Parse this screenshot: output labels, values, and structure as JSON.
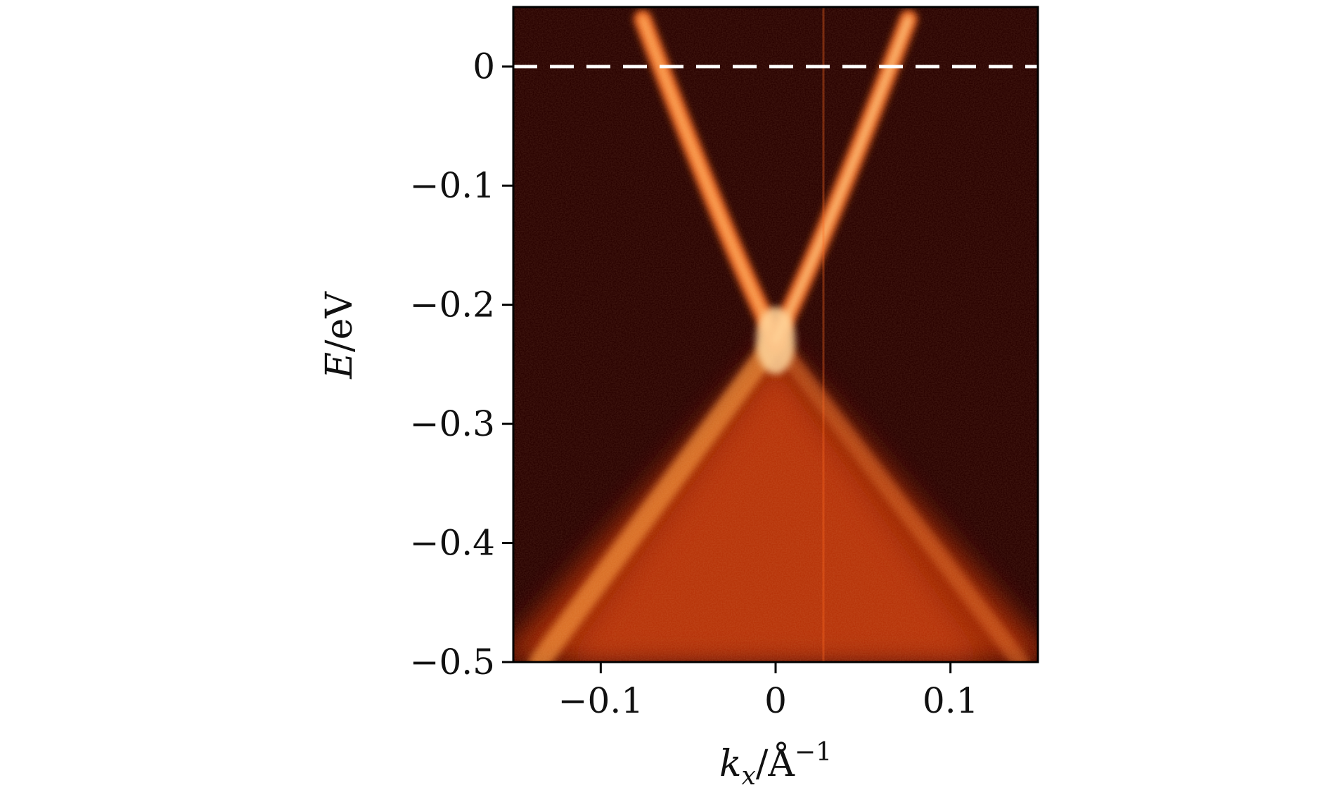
{
  "chart_data": {
    "type": "heatmap",
    "title": "",
    "xlabel": "k_x/Å^-1",
    "ylabel": "E/eV",
    "xlabel_parts": {
      "var": "k",
      "sub": "x",
      "unit": "/Å",
      "sup": "−1"
    },
    "ylabel_parts": {
      "var": "E",
      "unit": "/eV"
    },
    "xlim": [
      -0.15,
      0.15
    ],
    "ylim": [
      -0.5,
      0.05
    ],
    "xticks": [
      {
        "value": -0.1,
        "label": "−0.1"
      },
      {
        "value": 0,
        "label": "0"
      },
      {
        "value": 0.1,
        "label": "0.1"
      }
    ],
    "yticks": [
      {
        "value": 0,
        "label": "0"
      },
      {
        "value": -0.1,
        "label": "−0.1"
      },
      {
        "value": -0.2,
        "label": "−0.2"
      },
      {
        "value": -0.3,
        "label": "−0.3"
      },
      {
        "value": -0.4,
        "label": "−0.4"
      },
      {
        "value": -0.5,
        "label": "−0.5"
      }
    ],
    "fermi_level": {
      "E": 0,
      "style": "dashed",
      "color": "#ffffff"
    },
    "dirac_point": {
      "k": 0,
      "E": -0.23
    },
    "colormap": [
      "#1a0000",
      "#3a0500",
      "#7a1200",
      "#c23a05",
      "#f07a1a",
      "#ffc070",
      "#fff2e0"
    ],
    "grid": false,
    "legend": "none"
  }
}
